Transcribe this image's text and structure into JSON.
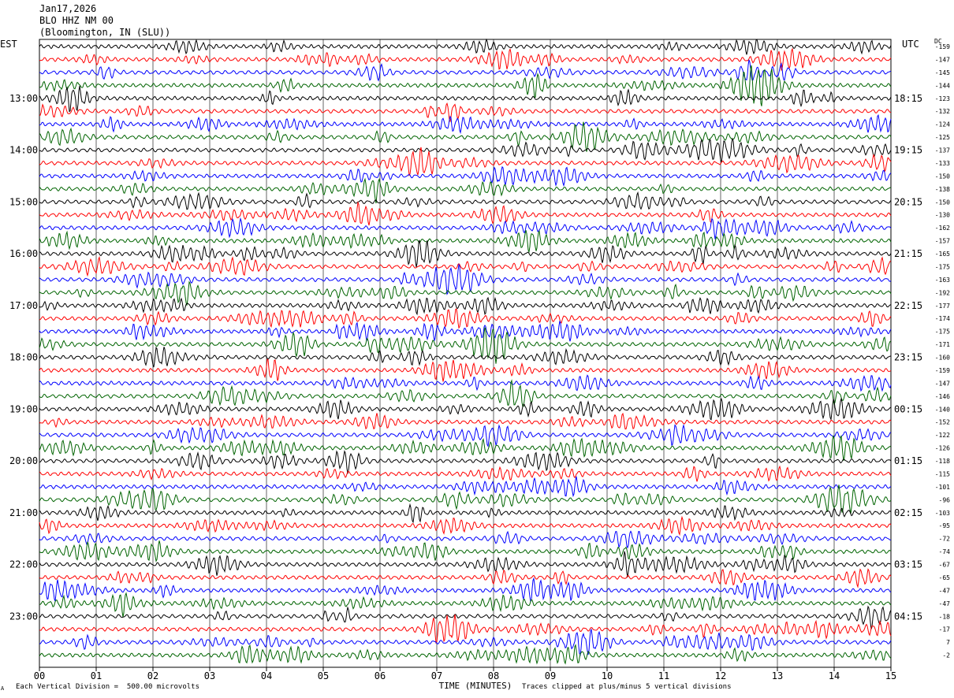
{
  "header": {
    "date": "Jan17,2026",
    "station": "BLO HHZ NM 00",
    "location": "(Bloomington, IN (SLU))"
  },
  "left_axis_label": "EST",
  "right_axis_label": "UTC",
  "dc_label": "DC",
  "chart_data": {
    "type": "line",
    "title": "BLO HHZ NM 00",
    "xlabel": "TIME (MINUTES)",
    "ylabel": "",
    "xlim": [
      0,
      15
    ],
    "x_ticks": [
      "00",
      "01",
      "02",
      "03",
      "04",
      "05",
      "06",
      "07",
      "08",
      "09",
      "10",
      "11",
      "12",
      "13",
      "14",
      "15"
    ],
    "trace_colors": [
      "#000000",
      "#ff0000",
      "#0000ff",
      "#006400"
    ],
    "traces_per_hour": 4,
    "trace_count": 48,
    "est_hour_labels": [
      "13:00",
      "14:00",
      "15:00",
      "16:00",
      "17:00",
      "18:00",
      "19:00",
      "20:00",
      "21:00",
      "22:00",
      "23:00"
    ],
    "utc_hour_labels": [
      "18:15",
      "19:15",
      "20:15",
      "21:15",
      "22:15",
      "23:15",
      "00:15",
      "01:15",
      "02:15",
      "03:15",
      "04:15"
    ],
    "dc_offsets": [
      "-159",
      "-147",
      "-145",
      "-144",
      "-123",
      "-132",
      "-124",
      "-125",
      "-137",
      "-133",
      "-150",
      "-138",
      "-150",
      "-130",
      "-162",
      "-157",
      "-165",
      "-175",
      "-163",
      "-192",
      "-177",
      "-174",
      "-175",
      "-171",
      "-160",
      "-159",
      "-147",
      "-146",
      "-140",
      "-152",
      "-122",
      "-126",
      "-118",
      "-115",
      "-101",
      "-96",
      "-103",
      "-95",
      "-72",
      "-74",
      "-67",
      "-65",
      "-47",
      "-47",
      "-18",
      "-17",
      "7",
      "-2"
    ],
    "grid": true
  },
  "footer": {
    "scale": "Each Vertical Division =  500.00 microvolts",
    "clip": "Traces clipped at plus/minus 5 vertical divisions",
    "corner_mark": "A"
  }
}
